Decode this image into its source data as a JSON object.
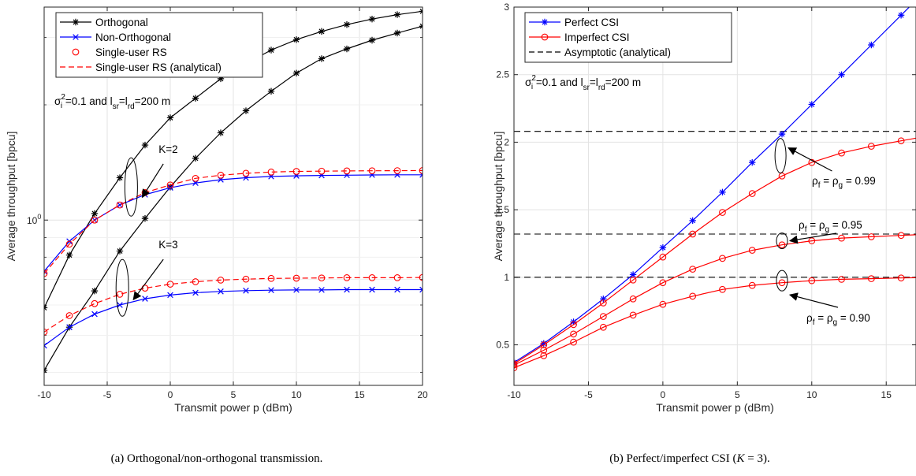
{
  "chart_data": [
    {
      "type": "line",
      "id": "a",
      "caption": "(a) Orthogonal/non-orthogonal transmission.",
      "xlabel": "Transmit power p (dBm)",
      "ylabel": "Average throughput [bpcu]",
      "xlim": [
        -10,
        20
      ],
      "ylim": [
        0.37,
        3.6
      ],
      "yscale": "log",
      "grid": true,
      "xticks": [
        -10,
        -5,
        0,
        5,
        10,
        15,
        20
      ],
      "xtick_labels": [
        "-10",
        "-5",
        "0",
        "5",
        "10",
        "15",
        "20"
      ],
      "yticks": [
        1
      ],
      "ytick_label_base": "10",
      "ytick_label_exp": "0",
      "legend_position": "top-left",
      "legend": [
        {
          "label": "Orthogonal",
          "color": "#000000",
          "marker": "asterisk",
          "dash": "solid"
        },
        {
          "label": "Non-Orthogonal",
          "color": "#0000ff",
          "marker": "x",
          "dash": "solid"
        },
        {
          "label": "Single-user RS",
          "color": "#ff0000",
          "marker": "circle",
          "dash": "none"
        },
        {
          "label": "Single-user RS (analytical)",
          "color": "#ff0000",
          "marker": "none",
          "dash": "dashed"
        }
      ],
      "param_text": {
        "pre": "σ",
        "sup1": "2",
        "sub1": "i",
        "mid": " =0.1 and l",
        "sub2": "sr",
        "eq": "=l",
        "sub3": "rd",
        "post": "=200 m"
      },
      "x": [
        -10,
        -8,
        -6,
        -4,
        -2,
        0,
        2,
        4,
        6,
        8,
        10,
        12,
        14,
        16,
        18,
        20
      ],
      "series": [
        {
          "group": "K=2",
          "kind": "orthogonal",
          "color": "#000000",
          "marker": "asterisk",
          "dash": "solid",
          "values": [
            0.59,
            0.81,
            1.04,
            1.29,
            1.57,
            1.85,
            2.08,
            2.34,
            2.56,
            2.78,
            2.96,
            3.11,
            3.24,
            3.35,
            3.44,
            3.51
          ]
        },
        {
          "group": "K=3",
          "kind": "orthogonal",
          "color": "#000000",
          "marker": "asterisk",
          "dash": "solid",
          "values": [
            0.405,
            0.525,
            0.653,
            0.83,
            1.01,
            1.22,
            1.45,
            1.69,
            1.93,
            2.17,
            2.42,
            2.64,
            2.8,
            2.95,
            3.08,
            3.21
          ]
        },
        {
          "group": "K=2",
          "kind": "non-orthogonal",
          "color": "#0000ff",
          "marker": "x",
          "dash": "solid",
          "values": [
            0.735,
            0.88,
            1.0,
            1.095,
            1.165,
            1.215,
            1.25,
            1.275,
            1.29,
            1.3,
            1.305,
            1.308,
            1.31,
            1.312,
            1.313,
            1.313
          ]
        },
        {
          "group": "K=3",
          "kind": "non-orthogonal",
          "color": "#0000ff",
          "marker": "x",
          "dash": "solid",
          "values": [
            0.47,
            0.525,
            0.568,
            0.6,
            0.623,
            0.637,
            0.646,
            0.651,
            0.654,
            0.656,
            0.657,
            0.657,
            0.658,
            0.658,
            0.658,
            0.658
          ]
        },
        {
          "group": "K=2",
          "kind": "single-user RS",
          "color": "#ff0000",
          "marker": "circle",
          "dash": "none",
          "values": [
            0.725,
            0.865,
            1.0,
            1.095,
            1.18,
            1.235,
            1.285,
            1.31,
            1.325,
            1.335,
            1.34,
            1.342,
            1.344,
            1.345,
            1.346,
            1.347
          ]
        },
        {
          "group": "K=2",
          "kind": "single-user RS (analytical)",
          "color": "#ff0000",
          "marker": "none",
          "dash": "dashed",
          "values": [
            0.725,
            0.865,
            1.0,
            1.095,
            1.18,
            1.235,
            1.285,
            1.31,
            1.325,
            1.335,
            1.34,
            1.342,
            1.344,
            1.345,
            1.346,
            1.347
          ]
        },
        {
          "group": "K=3",
          "kind": "single-user RS",
          "color": "#ff0000",
          "marker": "circle",
          "dash": "none",
          "values": [
            0.51,
            0.563,
            0.605,
            0.64,
            0.664,
            0.68,
            0.69,
            0.697,
            0.701,
            0.704,
            0.705,
            0.706,
            0.707,
            0.707,
            0.707,
            0.708
          ]
        },
        {
          "group": "K=3",
          "kind": "single-user RS (analytical)",
          "color": "#ff0000",
          "marker": "none",
          "dash": "dashed",
          "values": [
            0.51,
            0.563,
            0.605,
            0.64,
            0.664,
            0.68,
            0.69,
            0.697,
            0.701,
            0.704,
            0.705,
            0.706,
            0.707,
            0.707,
            0.707,
            0.708
          ]
        }
      ],
      "annotations": [
        {
          "label": "K=2",
          "arrow_from": [
            -2.8,
            1.35
          ],
          "arrow_to": [
            -3.9,
            1.25
          ],
          "ellipse_center": [
            -3.1,
            1.22
          ]
        },
        {
          "label": "K=3",
          "arrow_from": [
            -2.8,
            0.76
          ],
          "arrow_to": [
            -3.9,
            0.66
          ],
          "ellipse_center": [
            -3.8,
            0.665
          ]
        }
      ]
    },
    {
      "type": "line",
      "id": "b",
      "caption_pre": "(b) Perfect/imperfect CSI (",
      "caption_math": "K",
      "caption_post": " = 3).",
      "xlabel": "Transmit power p (dBm)",
      "ylabel": "Average throughput [bpcu]",
      "xlim": [
        -10,
        17
      ],
      "ylim": [
        0.2,
        3.0
      ],
      "yscale": "linear",
      "grid": true,
      "xticks": [
        -10,
        -5,
        0,
        5,
        10,
        15
      ],
      "xtick_labels": [
        "-10",
        "-5",
        "0",
        "5",
        "10",
        "15"
      ],
      "yticks": [
        0.5,
        1,
        1.5,
        2,
        2.5,
        3
      ],
      "ytick_labels": [
        "0.5",
        "1",
        "1.5",
        "2",
        "2.5",
        "3"
      ],
      "legend_position": "top-left",
      "legend": [
        {
          "label": "Perfect CSI",
          "color": "#0000ff",
          "marker": "asterisk",
          "dash": "solid"
        },
        {
          "label": "Imperfect CSI",
          "color": "#ff0000",
          "marker": "circle",
          "dash": "solid"
        },
        {
          "label": "Asymptotic (analytical)",
          "color": "#000000",
          "marker": "none",
          "dash": "dashed"
        }
      ],
      "param_text": {
        "pre": "σ",
        "sup1": "2",
        "sub1": "i",
        "mid": " =0.1 and l",
        "sub2": "sr",
        "eq": "=l",
        "sub3": "rd",
        "post": "=200 m"
      },
      "x": [
        -10,
        -8,
        -6,
        -4,
        -2,
        0,
        2,
        4,
        6,
        8,
        10,
        12,
        14,
        16
      ],
      "series": [
        {
          "name": "Perfect CSI",
          "color": "#0000ff",
          "marker": "asterisk",
          "dash": "solid",
          "values": [
            0.37,
            0.51,
            0.67,
            0.84,
            1.02,
            1.22,
            1.42,
            1.63,
            1.85,
            2.06,
            2.28,
            2.5,
            2.72,
            2.94
          ],
          "x_end": 17,
          "y_end": 3.05
        },
        {
          "rho": "0.99",
          "color": "#ff0000",
          "marker": "circle",
          "dash": "solid",
          "values": [
            0.36,
            0.5,
            0.65,
            0.81,
            0.98,
            1.15,
            1.32,
            1.48,
            1.62,
            1.75,
            1.85,
            1.92,
            1.97,
            2.01
          ],
          "x_end": 17,
          "y_end": 2.03
        },
        {
          "rho": "0.95",
          "color": "#ff0000",
          "marker": "circle",
          "dash": "solid",
          "values": [
            0.35,
            0.46,
            0.58,
            0.71,
            0.84,
            0.96,
            1.06,
            1.14,
            1.2,
            1.24,
            1.27,
            1.29,
            1.3,
            1.31
          ],
          "x_end": 17,
          "y_end": 1.315
        },
        {
          "rho": "0.90",
          "color": "#ff0000",
          "marker": "circle",
          "dash": "solid",
          "values": [
            0.33,
            0.42,
            0.52,
            0.63,
            0.72,
            0.8,
            0.86,
            0.91,
            0.94,
            0.96,
            0.975,
            0.985,
            0.99,
            0.995
          ],
          "x_end": 17,
          "y_end": 0.997
        }
      ],
      "asymptotes": [
        2.08,
        1.32,
        1.0
      ],
      "annotations": [
        {
          "rho": "0.99",
          "text_pre": "ρ",
          "sub_a": "f",
          "mid": " = ρ",
          "sub_b": "g",
          "post": " = 0.99",
          "arrow_from": [
            10.3,
            1.82
          ],
          "arrow_to": [
            8.3,
            2.01
          ],
          "ellipse_center": [
            7.9,
            1.9
          ]
        },
        {
          "rho": "0.95",
          "text_pre": "ρ",
          "sub_a": "f",
          "mid": " = ρ",
          "sub_b": "g",
          "post": " = 0.95",
          "arrow_from": [
            10.6,
            1.35
          ],
          "arrow_to": [
            8.4,
            1.3
          ],
          "ellipse_center": [
            8.0,
            1.27
          ]
        },
        {
          "rho": "0.90",
          "text_pre": "ρ",
          "sub_a": "f",
          "mid": " = ρ",
          "sub_b": "g",
          "post": " = 0.90",
          "arrow_from": [
            10.7,
            0.78
          ],
          "arrow_to": [
            8.5,
            0.88
          ],
          "ellipse_center": [
            8.0,
            0.975
          ]
        }
      ]
    }
  ]
}
